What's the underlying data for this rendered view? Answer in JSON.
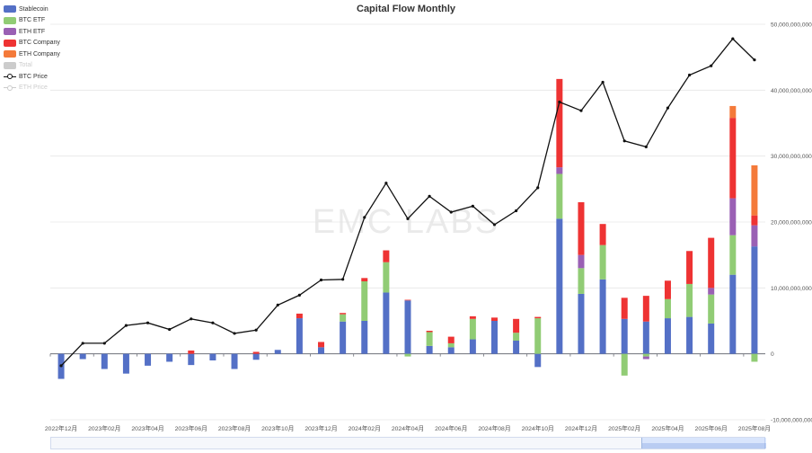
{
  "chart_data": {
    "type": "bar",
    "title": "Capital Flow Monthly",
    "watermark": "EMC LABS",
    "categories": [
      "2022年12月",
      "2023年01月",
      "2023年02月",
      "2023年03月",
      "2023年04月",
      "2023年05月",
      "2023年06月",
      "2023年07月",
      "2023年08月",
      "2023年09月",
      "2023年10月",
      "2023年11月",
      "2023年12月",
      "2024年01月",
      "2024年02月",
      "2024年03月",
      "2024年04月",
      "2024年05月",
      "2024年06月",
      "2024年07月",
      "2024年08月",
      "2024年09月",
      "2024年10月",
      "2024年11月",
      "2024年12月",
      "2025年01月",
      "2025年02月",
      "2025年03月",
      "2025年04月",
      "2025年05月",
      "2025年06月",
      "2025年07月",
      "2025年08月"
    ],
    "x_tick_labels": [
      "2022年12月",
      "2023年02月",
      "2023年04月",
      "2023年06月",
      "2023年08月",
      "2023年10月",
      "2023年12月",
      "2024年02月",
      "2024年04月",
      "2024年06月",
      "2024年08月",
      "2024年10月",
      "2024年12月",
      "2025年02月",
      "2025年04月",
      "2025年06月",
      "2025年08月"
    ],
    "y_tick_labels": [
      "50,000,000,000",
      "40,000,000,000",
      "30,000,000,000",
      "20,000,000,000",
      "10,000,000,000",
      "0",
      "-10,000,000,000"
    ],
    "ylim": [
      -10000000000,
      50000000000
    ],
    "stacked": true,
    "series": [
      {
        "name": "Stablecoin",
        "color": "#5470c6",
        "values": [
          -3800000000.0,
          -800000000.0,
          -2300000000.0,
          -3000000000.0,
          -1800000000.0,
          -1200000000.0,
          -1700000000.0,
          -1000000000.0,
          -2300000000.0,
          -900000000.0,
          600000000.0,
          5400000000.0,
          1000000000.0,
          4900000000.0,
          5000000000.0,
          9300000000.0,
          8100000000.0,
          1200000000.0,
          1000000000.0,
          2200000000.0,
          5000000000.0,
          2000000000.0,
          -2000000000.0,
          20500000000.0,
          9100000000.0,
          11300000000.0,
          5300000000.0,
          4900000000.0,
          5400000000.0,
          5600000000.0,
          4600000000.0,
          12000000000.0,
          16300000000.0
        ]
      },
      {
        "name": "BTC ETF",
        "color": "#91cc75",
        "values": [
          0,
          0,
          0,
          0,
          0,
          0,
          0,
          0,
          0,
          0,
          0,
          0,
          0,
          1100000000.0,
          6000000000.0,
          4600000000.0,
          -400000000.0,
          2100000000.0,
          600000000.0,
          3100000000.0,
          0,
          1200000000.0,
          5400000000.0,
          6800000000.0,
          3900000000.0,
          5200000000.0,
          -3300000000.0,
          -400000000.0,
          2900000000.0,
          5000000000.0,
          4400000000.0,
          6000000000.0,
          -1200000000.0
        ]
      },
      {
        "name": "ETH ETF",
        "color": "#9a60b4",
        "values": [
          0,
          0,
          0,
          0,
          0,
          0,
          0,
          0,
          0,
          0,
          0,
          0,
          0,
          0,
          0,
          0,
          0,
          0,
          0,
          0,
          0,
          0,
          0,
          1000000000.0,
          2000000000.0,
          0,
          0,
          -400000000.0,
          0,
          0,
          1000000000.0,
          5600000000.0,
          3200000000.0
        ]
      },
      {
        "name": "BTC Company",
        "color": "#ee3333",
        "values": [
          0,
          0,
          0,
          0,
          0,
          0,
          500000000.0,
          0,
          0,
          300000000.0,
          0,
          700000000.0,
          800000000.0,
          200000000.0,
          500000000.0,
          1800000000.0,
          100000000.0,
          200000000.0,
          1000000000.0,
          400000000.0,
          500000000.0,
          2100000000.0,
          200000000.0,
          13400000000.0,
          8000000000.0,
          3200000000.0,
          3200000000.0,
          3900000000.0,
          2800000000.0,
          5000000000.0,
          7600000000.0,
          12200000000.0,
          1500000000.0
        ]
      },
      {
        "name": "ETH Company",
        "color": "#f47a3a",
        "values": [
          0,
          0,
          0,
          0,
          0,
          0,
          0,
          0,
          0,
          0,
          0,
          0,
          0,
          0,
          0,
          0,
          0,
          0,
          0,
          0,
          0,
          0,
          0,
          0,
          0,
          0,
          0,
          0,
          0,
          0,
          0,
          1800000000.0,
          7600000000.0
        ]
      }
    ],
    "hidden_series": [
      {
        "name": "Total",
        "color": "#cccccc"
      },
      {
        "name": "ETH Price",
        "color": "#cccccc"
      }
    ],
    "line_series": [
      {
        "name": "BTC Price",
        "color": "#111111",
        "values": [
          -1800000000.0,
          1600000000.0,
          1600000000.0,
          4300000000.0,
          4700000000.0,
          3700000000.0,
          5300000000.0,
          4700000000.0,
          3100000000.0,
          3600000000.0,
          7400000000.0,
          8900000000.0,
          11200000000.0,
          11300000000.0,
          20700000000.0,
          25900000000.0,
          20500000000.0,
          23900000000.0,
          21500000000.0,
          22400000000.0,
          19600000000.0,
          21700000000.0,
          25200000000.0,
          38200000000.0,
          36900000000.0,
          41200000000.0,
          32300000000.0,
          31400000000.0,
          37300000000.0,
          42300000000.0,
          43700000000.0,
          47800000000.0,
          44600000000.0
        ]
      }
    ],
    "legend": [
      {
        "name": "Stablecoin",
        "kind": "box",
        "color": "#5470c6",
        "active": true
      },
      {
        "name": "BTC ETF",
        "kind": "box",
        "color": "#91cc75",
        "active": true
      },
      {
        "name": "ETH ETF",
        "kind": "box",
        "color": "#9a60b4",
        "active": true
      },
      {
        "name": "BTC Company",
        "kind": "box",
        "color": "#ee3333",
        "active": true
      },
      {
        "name": "ETH Company",
        "kind": "box",
        "color": "#f47a3a",
        "active": true
      },
      {
        "name": "Total",
        "kind": "box",
        "color": "#cccccc",
        "active": false
      },
      {
        "name": "BTC Price",
        "kind": "line",
        "color": "#111111",
        "active": true
      },
      {
        "name": "ETH Price",
        "kind": "line",
        "color": "#cccccc",
        "active": false
      }
    ],
    "legend_position": "top-left",
    "grid": true
  }
}
